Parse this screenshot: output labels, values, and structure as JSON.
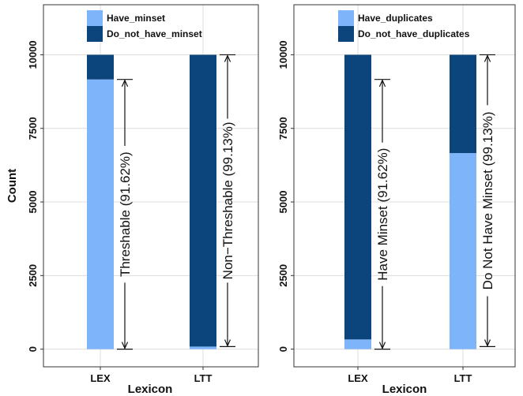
{
  "colors": {
    "light": "#7eb4fa",
    "dark": "#0c447c",
    "grid": "#dcdcdc",
    "frame": "#333333"
  },
  "chart_data": [
    {
      "type": "bar",
      "stacked": true,
      "title": "",
      "xlabel": "Lexicon",
      "ylabel": "Count",
      "ylim": [
        -600,
        11700
      ],
      "yticks": [
        "0",
        "2500",
        "5000",
        "7500",
        "10000"
      ],
      "ytick_values": [
        0,
        2500,
        5000,
        7500,
        10000
      ],
      "categories": [
        "LEX",
        "LTT"
      ],
      "grid": true,
      "legend_position": "top",
      "series": [
        {
          "name": "Have_minset",
          "color": "light",
          "values": [
            9162,
            87
          ]
        },
        {
          "name": "Do_not_have_minset",
          "color": "dark",
          "values": [
            838,
            9913
          ]
        }
      ],
      "annotations": [
        {
          "text": "Threshable (91.62%)",
          "category": "LEX",
          "from": 0,
          "to": 9162
        },
        {
          "text": "Non−Threshable (99.13%)",
          "category": "LTT",
          "from": 87,
          "to": 10000
        }
      ]
    },
    {
      "type": "bar",
      "stacked": true,
      "title": "",
      "xlabel": "Lexicon",
      "ylabel": "",
      "ylim": [
        -600,
        11700
      ],
      "yticks": [
        "0",
        "2500",
        "5000",
        "7500",
        "10000"
      ],
      "ytick_values": [
        0,
        2500,
        5000,
        7500,
        10000
      ],
      "categories": [
        "LEX",
        "LTT"
      ],
      "grid": true,
      "legend_position": "top",
      "series": [
        {
          "name": "Have_duplicates",
          "color": "light",
          "values": [
            330,
            6660
          ]
        },
        {
          "name": "Do_not_have_duplicates",
          "color": "dark",
          "values": [
            9670,
            3340
          ]
        }
      ],
      "annotations": [
        {
          "text": "Have Minset (91.62%)",
          "category": "LEX",
          "from": 0,
          "to": 9162
        },
        {
          "text": "Do Not Have Minset (99.13%)",
          "category": "LTT",
          "from": 87,
          "to": 10000
        }
      ]
    }
  ]
}
